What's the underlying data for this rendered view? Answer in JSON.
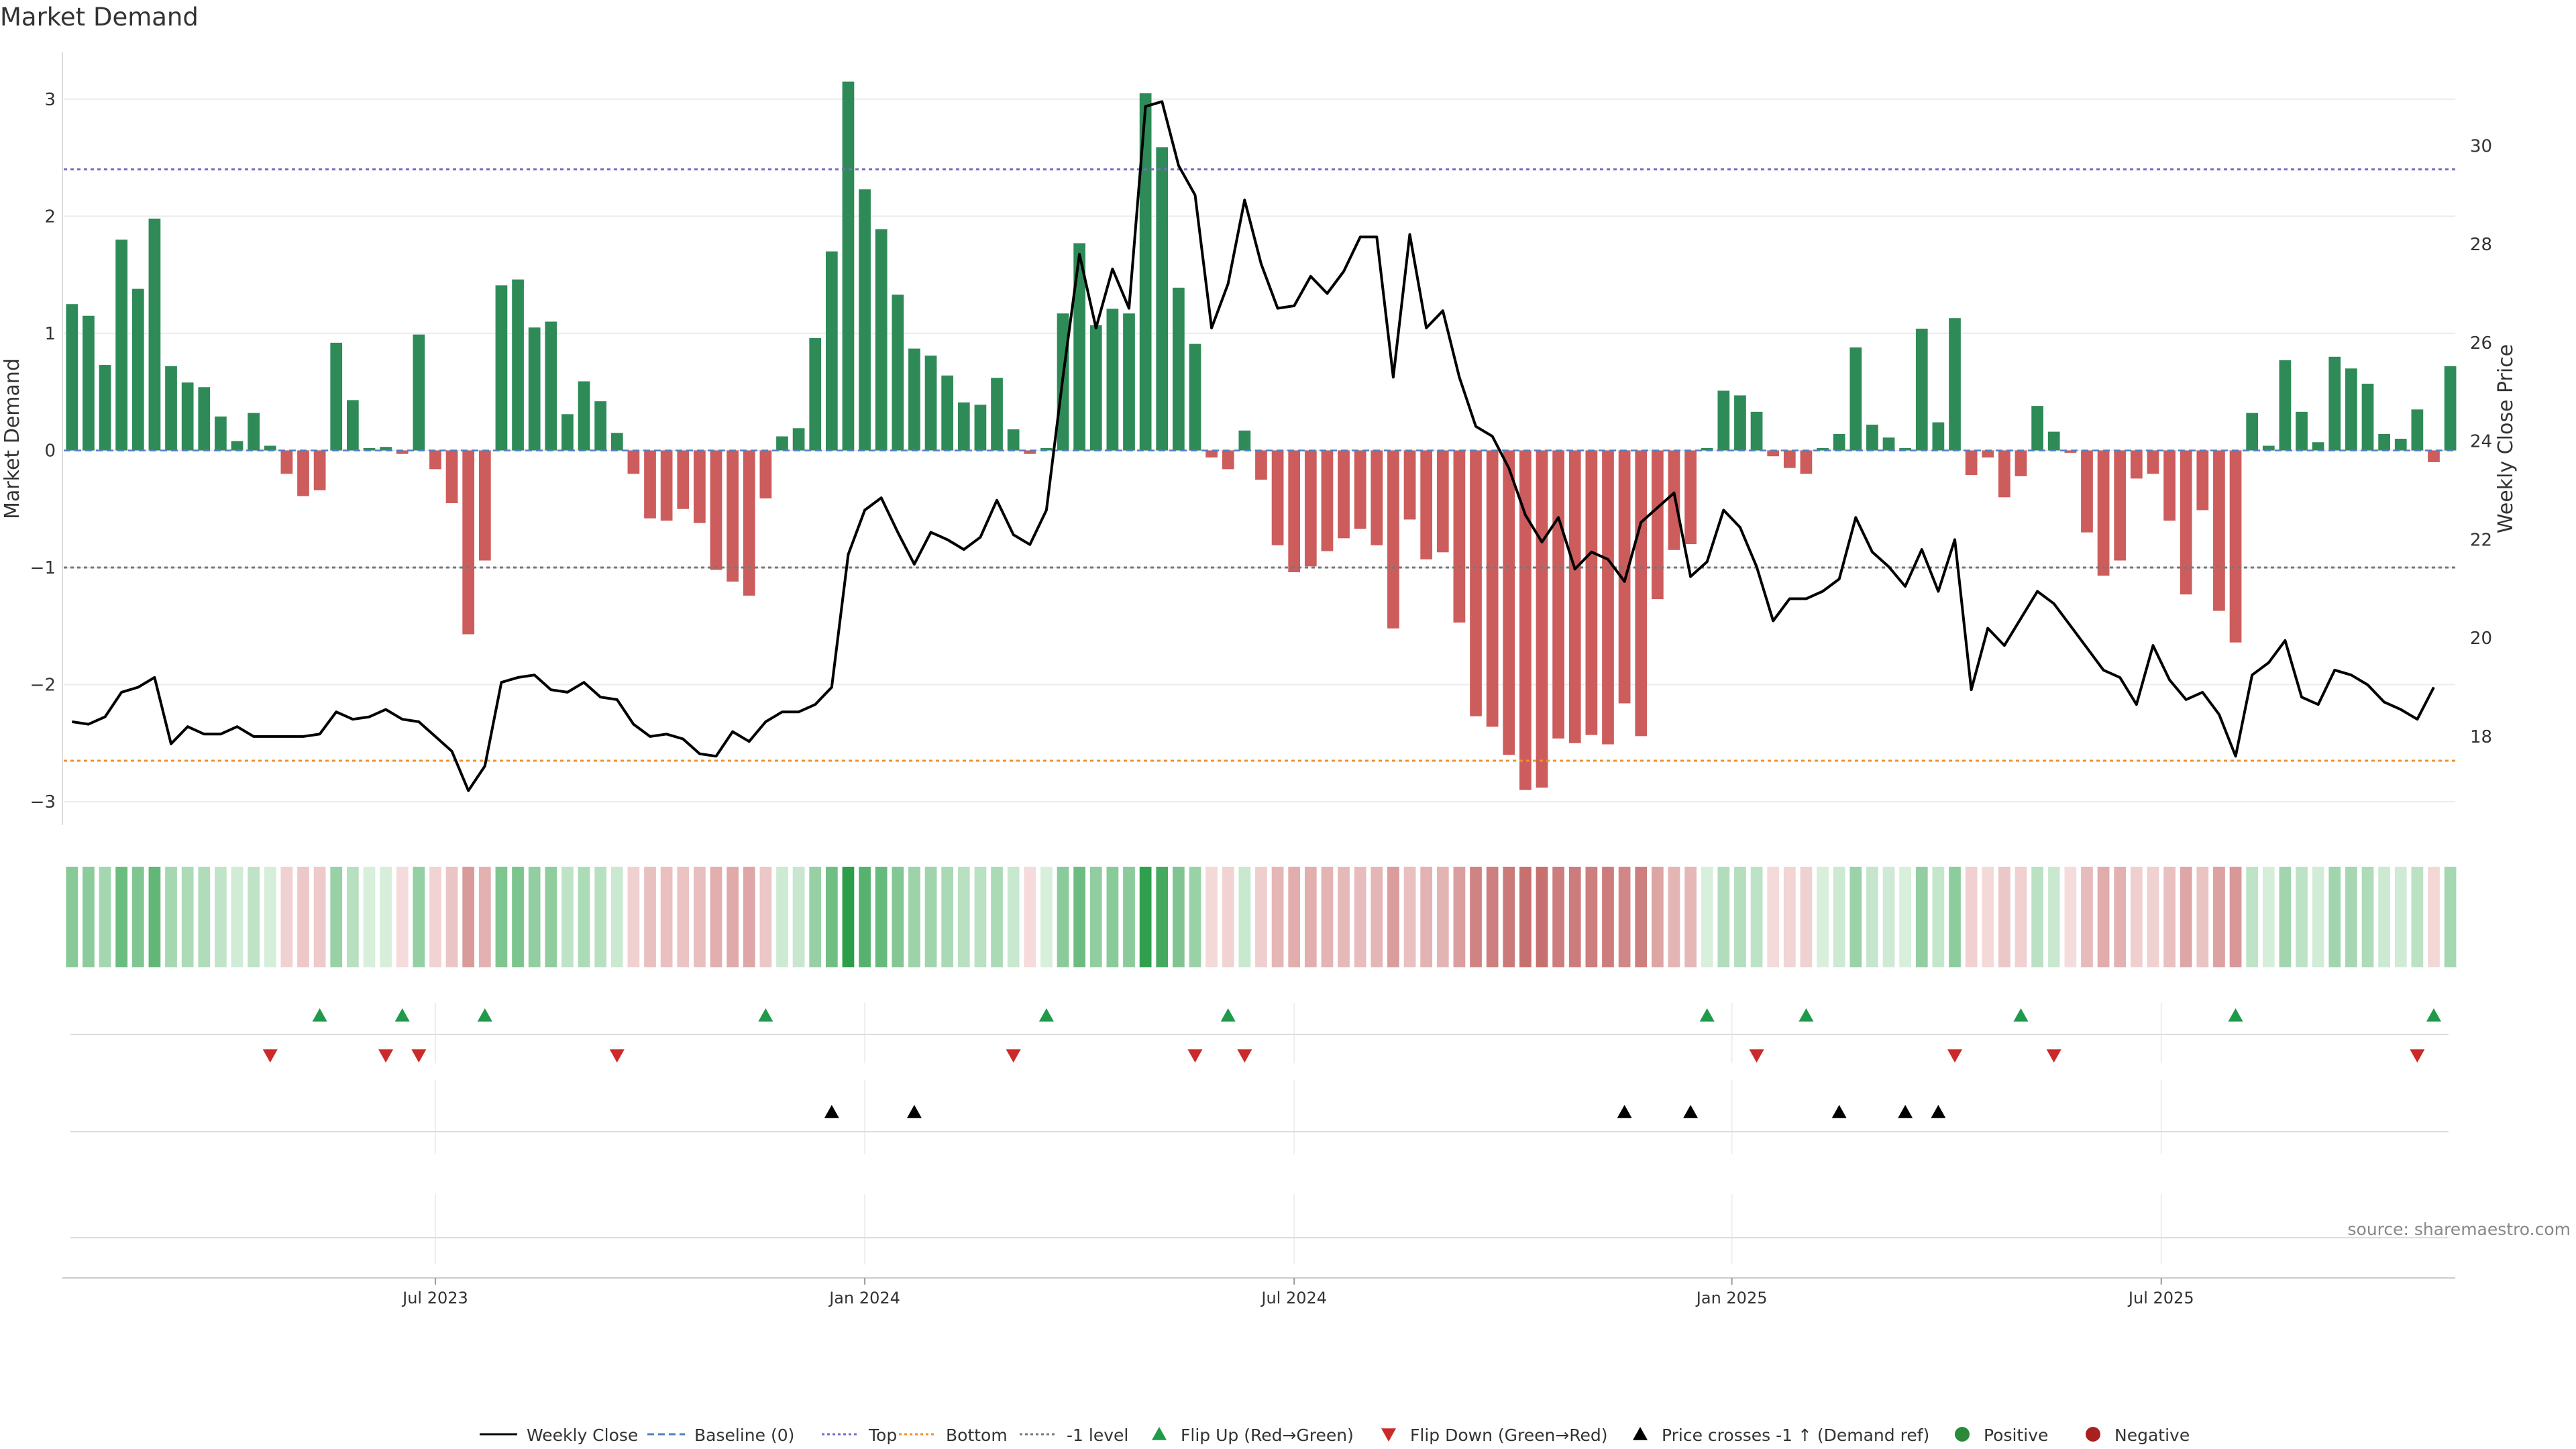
{
  "chart_data": {
    "type": "bar",
    "title": "Market Demand",
    "source": "source: sharemaestro.com",
    "ylabel_left": "Market Demand",
    "ylabel_right": "Weekly Close Price",
    "ylim_left": [
      -3.2,
      3.4
    ],
    "yticks_left": [
      -3,
      -2,
      -1,
      0,
      1,
      2,
      3
    ],
    "ylim_right": [
      16.2,
      31.9
    ],
    "yticks_right": [
      18,
      20,
      22,
      24,
      26,
      28,
      30
    ],
    "x_start_week": 0,
    "weeks_per_month": 4.345,
    "x_axis_ticks": [
      {
        "label": "Jul 2023",
        "week": 22
      },
      {
        "label": "Jan 2024",
        "week": 48
      },
      {
        "label": "Jul 2024",
        "week": 74
      },
      {
        "label": "Jan 2025",
        "week": 100.5
      },
      {
        "label": "Jul 2025",
        "week": 126.5
      }
    ],
    "reference_lines": [
      {
        "name": "Top",
        "value": 2.4,
        "color": "#7b68c8"
      },
      {
        "name": "-1 level",
        "value": -1.0,
        "color": "#777777"
      },
      {
        "name": "Bottom",
        "value": -2.65,
        "color": "#f0902c"
      }
    ],
    "demand": [
      1.25,
      1.15,
      0.73,
      1.8,
      1.38,
      1.98,
      0.72,
      0.58,
      0.54,
      0.29,
      0.08,
      0.32,
      0.04,
      -0.2,
      -0.39,
      -0.34,
      0.92,
      0.43,
      0.02,
      0.03,
      -0.03,
      0.99,
      -0.16,
      -0.45,
      -1.57,
      -0.94,
      1.41,
      1.46,
      1.05,
      1.1,
      0.31,
      0.59,
      0.42,
      0.15,
      -0.2,
      -0.58,
      -0.6,
      -0.5,
      -0.62,
      -1.02,
      -1.12,
      -1.24,
      -0.41,
      0.12,
      0.19,
      0.96,
      1.7,
      3.15,
      2.23,
      1.89,
      1.33,
      0.87,
      0.81,
      0.64,
      0.41,
      0.39,
      0.62,
      0.18,
      -0.03,
      0.02,
      1.17,
      1.77,
      1.07,
      1.21,
      1.17,
      3.05,
      2.59,
      1.39,
      0.91,
      -0.06,
      -0.16,
      0.17,
      -0.25,
      -0.81,
      -1.04,
      -0.99,
      -0.86,
      -0.75,
      -0.67,
      -0.81,
      -1.52,
      -0.59,
      -0.93,
      -0.87,
      -1.47,
      -2.27,
      -2.36,
      -2.6,
      -2.9,
      -2.88,
      -2.46,
      -2.5,
      -2.43,
      -2.51,
      -2.16,
      -2.44,
      -1.27,
      -0.85,
      -0.8,
      0.02,
      0.51,
      0.47,
      0.33,
      -0.05,
      -0.15,
      -0.2,
      0.02,
      0.14,
      0.88,
      0.22,
      0.11,
      0.02,
      1.04,
      0.24,
      1.13,
      -0.21,
      -0.06,
      -0.4,
      -0.22,
      0.38,
      0.16,
      -0.02,
      -0.7,
      -1.07,
      -0.94,
      -0.24,
      -0.2,
      -0.6,
      -1.23,
      -0.51,
      -1.37,
      -1.64,
      0.32,
      0.04,
      0.77,
      0.33,
      0.07,
      0.8,
      0.7,
      0.57,
      0.14,
      0.1,
      0.35,
      -0.1,
      0.72
    ],
    "close": [
      18.3,
      18.25,
      18.4,
      18.9,
      19.0,
      19.2,
      17.85,
      18.2,
      18.05,
      18.05,
      18.2,
      18.0,
      18.0,
      18.0,
      18.0,
      18.05,
      18.5,
      18.35,
      18.4,
      18.55,
      18.35,
      18.3,
      18.0,
      17.7,
      16.9,
      17.4,
      19.1,
      19.2,
      19.25,
      18.95,
      18.9,
      19.1,
      18.8,
      18.75,
      18.25,
      18.0,
      18.05,
      17.95,
      17.65,
      17.6,
      18.1,
      17.9,
      18.3,
      18.5,
      18.5,
      18.65,
      19.0,
      21.7,
      22.6,
      22.85,
      22.15,
      21.5,
      22.15,
      22.0,
      21.8,
      22.05,
      22.8,
      22.1,
      21.9,
      22.6,
      25.3,
      27.8,
      26.3,
      27.5,
      26.7,
      30.8,
      30.9,
      29.6,
      29.0,
      26.3,
      27.2,
      28.9,
      27.6,
      26.7,
      26.75,
      27.35,
      27.0,
      27.45,
      28.15,
      28.15,
      25.3,
      28.2,
      26.3,
      26.65,
      25.3,
      24.3,
      24.1,
      23.45,
      22.5,
      21.95,
      22.45,
      21.4,
      21.75,
      21.6,
      21.15,
      22.35,
      22.65,
      22.95,
      21.25,
      21.55,
      22.6,
      22.25,
      21.45,
      20.35,
      20.8,
      20.8,
      20.95,
      21.2,
      22.45,
      21.75,
      21.45,
      21.05,
      21.8,
      20.95,
      22.0,
      18.95,
      20.2,
      19.85,
      20.4,
      20.95,
      20.7,
      20.25,
      19.8,
      19.35,
      19.2,
      18.65,
      19.85,
      19.15,
      18.75,
      18.9,
      18.45,
      17.6,
      19.25,
      19.5,
      19.95,
      18.8,
      18.65,
      19.35,
      19.25,
      19.05,
      18.7,
      18.55,
      18.35,
      19.0
    ],
    "flip_up_weeks": [
      15,
      20,
      25,
      42,
      59,
      70,
      99,
      105,
      118,
      131,
      143
    ],
    "flip_down_weeks": [
      12,
      19,
      21,
      33,
      57,
      68,
      71,
      102,
      114,
      120,
      142
    ],
    "price_cross_weeks": [
      46,
      51,
      94,
      98,
      107,
      111,
      113
    ],
    "legend": [
      {
        "label": "Weekly Close",
        "kind": "line",
        "color": "#000000",
        "dash": ""
      },
      {
        "label": "Baseline (0)",
        "kind": "line",
        "color": "#4f7fc0",
        "dash": "10,6"
      },
      {
        "label": "Top",
        "kind": "line",
        "color": "#7b68c8",
        "dash": "4,4"
      },
      {
        "label": "Bottom",
        "kind": "line",
        "color": "#f0902c",
        "dash": "4,4"
      },
      {
        "label": "-1 level",
        "kind": "line",
        "color": "#777777",
        "dash": "4,4"
      },
      {
        "label": "Flip Up (Red→Green)",
        "kind": "tri-up",
        "color": "#1f9a4a"
      },
      {
        "label": "Flip Down (Green→Red)",
        "kind": "tri-down",
        "color": "#cc2a2a"
      },
      {
        "label": "Price crosses -1 ↑ (Demand ref)",
        "kind": "tri-up",
        "color": "#000000"
      },
      {
        "label": "Positive",
        "kind": "dot",
        "color": "#2a8a3a"
      },
      {
        "label": "Negative",
        "kind": "dot",
        "color": "#a82020"
      }
    ],
    "colors": {
      "positive_bar": "#2e8b57",
      "negative_bar": "#cd5c5c",
      "close_line": "#000000",
      "baseline": "#4f7fc0",
      "grid": "#ececec"
    }
  }
}
